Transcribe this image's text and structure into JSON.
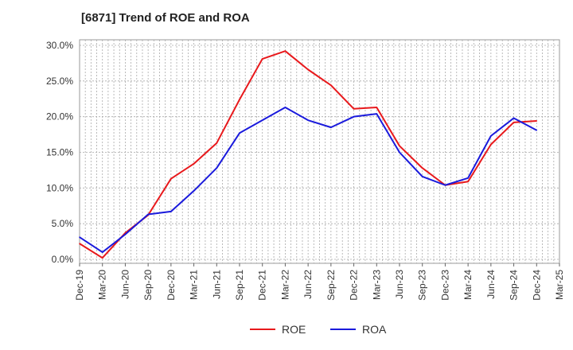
{
  "chart_data": {
    "type": "line",
    "title": "[6871]  Trend of ROE and ROA",
    "xlabel": "",
    "ylabel": "",
    "categories": [
      "Dec-19",
      "Mar-20",
      "Jun-20",
      "Sep-20",
      "Dec-20",
      "Mar-21",
      "Jun-21",
      "Sep-21",
      "Dec-21",
      "Mar-22",
      "Jun-22",
      "Sep-22",
      "Dec-22",
      "Mar-23",
      "Jun-23",
      "Sep-23",
      "Dec-23",
      "Mar-24",
      "Jun-24",
      "Sep-24",
      "Dec-24",
      "Mar-25"
    ],
    "ylim": [
      0,
      30
    ],
    "yticks": [
      "0.0%",
      "5.0%",
      "10.0%",
      "15.0%",
      "20.0%",
      "25.0%",
      "30.0%"
    ],
    "grid": true,
    "legend_position": "bottom",
    "series": [
      {
        "name": "ROE",
        "color": "#e8191c",
        "values": [
          2.2,
          0.2,
          3.7,
          6.2,
          11.3,
          13.4,
          16.3,
          22.4,
          28.1,
          29.2,
          26.6,
          24.4,
          21.1,
          21.3,
          15.9,
          12.8,
          10.4,
          10.9,
          16.1,
          19.2,
          19.4,
          null
        ]
      },
      {
        "name": "ROA",
        "color": "#1a1adc",
        "values": [
          3.1,
          1.0,
          3.5,
          6.3,
          6.7,
          9.6,
          12.8,
          17.7,
          19.5,
          21.3,
          19.5,
          18.5,
          20.0,
          20.4,
          15.0,
          11.6,
          10.4,
          11.4,
          17.3,
          19.8,
          18.1,
          null
        ]
      }
    ]
  }
}
